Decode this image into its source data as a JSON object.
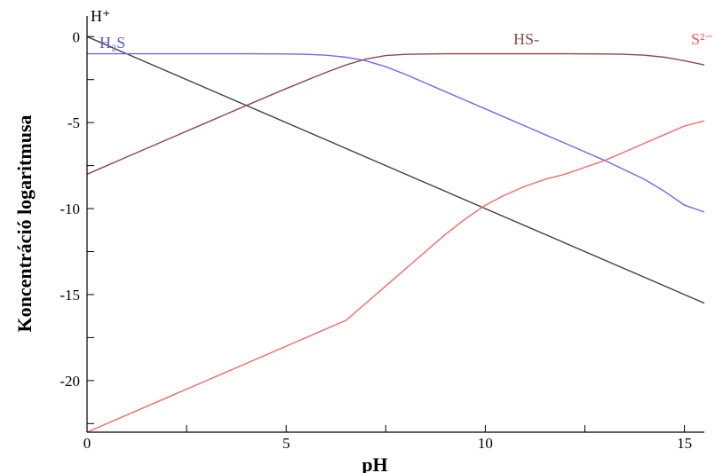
{
  "chart_data": {
    "type": "line",
    "xlabel": "pH",
    "ylabel": "Koncentráció logaritmusa",
    "xlim": [
      0,
      15.5
    ],
    "ylim": [
      -23,
      1.2
    ],
    "x_ticks": [
      0,
      5,
      10,
      15
    ],
    "y_ticks": [
      0,
      -5,
      -10,
      -15,
      -20
    ],
    "grid": false,
    "series": [
      {
        "name": "H⁺",
        "color": "#404040",
        "points": [
          [
            0,
            0
          ],
          [
            15.5,
            -15.5
          ]
        ]
      },
      {
        "name": "H₂S",
        "color": "#6a6af0",
        "points": [
          [
            0,
            -1
          ],
          [
            1,
            -1
          ],
          [
            2,
            -1
          ],
          [
            3,
            -1
          ],
          [
            4,
            -1
          ],
          [
            5,
            -1.01
          ],
          [
            5.5,
            -1.03
          ],
          [
            6,
            -1.08
          ],
          [
            6.5,
            -1.2
          ],
          [
            7,
            -1.4
          ],
          [
            7.5,
            -1.75
          ],
          [
            8,
            -2.2
          ],
          [
            8.5,
            -2.7
          ],
          [
            9,
            -3.2
          ],
          [
            9.5,
            -3.7
          ],
          [
            10,
            -4.2
          ],
          [
            10.5,
            -4.7
          ],
          [
            11,
            -5.2
          ],
          [
            11.5,
            -5.7
          ],
          [
            12,
            -6.2
          ],
          [
            12.5,
            -6.7
          ],
          [
            13,
            -7.2
          ],
          [
            13.5,
            -7.75
          ],
          [
            14,
            -8.3
          ],
          [
            14.5,
            -9.0
          ],
          [
            15,
            -9.8
          ],
          [
            15.5,
            -10.2
          ]
        ]
      },
      {
        "name": "HS-",
        "color": "#8b4a4a",
        "points": [
          [
            0,
            -8
          ],
          [
            1,
            -7
          ],
          [
            2,
            -6
          ],
          [
            3,
            -5
          ],
          [
            4,
            -4
          ],
          [
            5,
            -3.02
          ],
          [
            5.5,
            -2.55
          ],
          [
            6,
            -2.08
          ],
          [
            6.5,
            -1.65
          ],
          [
            7,
            -1.3
          ],
          [
            7.5,
            -1.1
          ],
          [
            8,
            -1.03
          ],
          [
            9,
            -1.0
          ],
          [
            10,
            -1.0
          ],
          [
            11,
            -1.0
          ],
          [
            12,
            -1.0
          ],
          [
            13,
            -1.01
          ],
          [
            13.5,
            -1.03
          ],
          [
            14,
            -1.08
          ],
          [
            14.5,
            -1.2
          ],
          [
            15,
            -1.4
          ],
          [
            15.5,
            -1.65
          ]
        ]
      },
      {
        "name": "S²⁻",
        "color": "#f06a6a",
        "points": [
          [
            0,
            -23
          ],
          [
            1,
            -22
          ],
          [
            2,
            -21
          ],
          [
            3,
            -20
          ],
          [
            4,
            -19
          ],
          [
            5,
            -18
          ],
          [
            6,
            -17
          ],
          [
            6.5,
            -16.5
          ],
          [
            7,
            -15.5
          ],
          [
            7.5,
            -14.5
          ],
          [
            8,
            -13.5
          ],
          [
            8.5,
            -12.5
          ],
          [
            9,
            -11.5
          ],
          [
            9.5,
            -10.6
          ],
          [
            10,
            -9.8
          ],
          [
            10.5,
            -9.2
          ],
          [
            11,
            -8.7
          ],
          [
            11.5,
            -8.3
          ],
          [
            12,
            -8.0
          ],
          [
            12.5,
            -7.6
          ],
          [
            13,
            -7.2
          ],
          [
            13.5,
            -6.7
          ],
          [
            14,
            -6.2
          ],
          [
            14.5,
            -5.7
          ],
          [
            15,
            -5.2
          ],
          [
            15.5,
            -4.9
          ]
        ]
      }
    ]
  }
}
